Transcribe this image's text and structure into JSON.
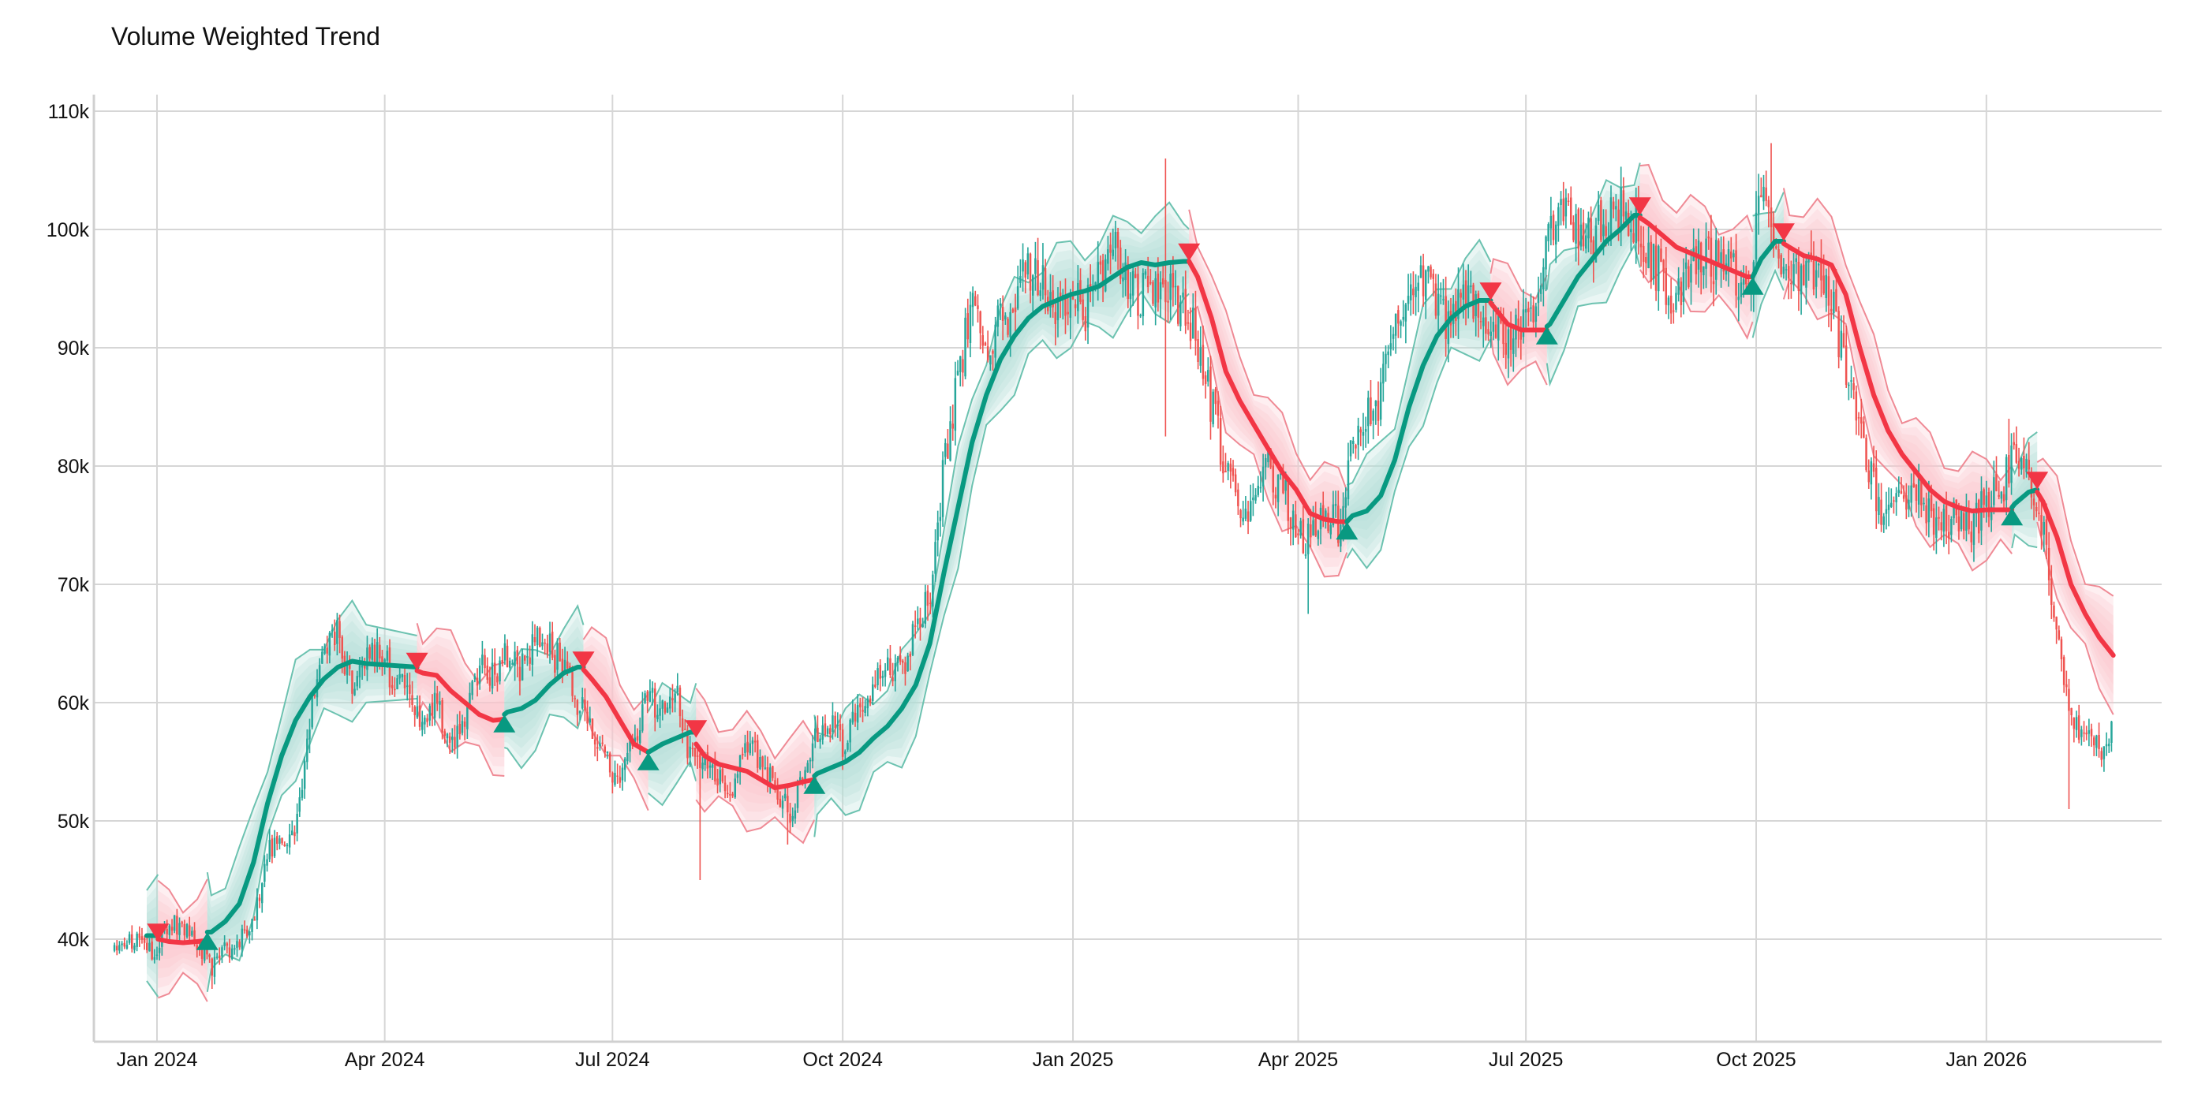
{
  "chart": {
    "title": "Volume Weighted Trend"
  },
  "chart_data": {
    "type": "candlestick",
    "title": "Volume Weighted Trend",
    "xlabel": "",
    "ylabel": "",
    "ylim": [
      31300,
      111500
    ],
    "grid": true,
    "legend": null,
    "y_ticks": [
      {
        "value": 40000,
        "label": "40k"
      },
      {
        "value": 50000,
        "label": "50k"
      },
      {
        "value": 60000,
        "label": "60k"
      },
      {
        "value": 70000,
        "label": "70k"
      },
      {
        "value": 80000,
        "label": "80k"
      },
      {
        "value": 90000,
        "label": "90k"
      },
      {
        "value": 100000,
        "label": "100k"
      },
      {
        "value": 110000,
        "label": "110k"
      }
    ],
    "x_ticks": [
      {
        "day": 0,
        "label": "Jan 2024"
      },
      {
        "day": 91,
        "label": "Apr 2024"
      },
      {
        "day": 182,
        "label": "Jul 2024"
      },
      {
        "day": 274,
        "label": "Oct 2024"
      },
      {
        "day": 366,
        "label": "Jan 2025"
      },
      {
        "day": 456,
        "label": "Apr 2025"
      },
      {
        "day": 547,
        "label": "Jul 2025"
      },
      {
        "day": 639,
        "label": "Oct 2025"
      },
      {
        "day": 731,
        "label": "Jan 2026"
      }
    ],
    "x_origin": "2024-01-01",
    "xlim_days": [
      -25,
      802
    ],
    "colors": {
      "bull_candle": "#26a69a",
      "bear_candle": "#ef5350",
      "bull_trend": "#089981",
      "bear_trend": "#f23645",
      "bull_band_fill": "#b2dfd6",
      "bear_band_fill": "#fbc7cc",
      "bull_band_edge": "#6cc2b0",
      "bear_band_edge": "#ef8a95",
      "grid": "#d6d6d6",
      "axis": "#d0d0d0"
    },
    "price_path": {
      "description": "approximate close price, sampled every step_days starting at start_day (days from 2024-01-01)",
      "start_day": -17.7,
      "step_days": 5.63,
      "closes": [
        39000,
        39500,
        40000,
        38500,
        41500,
        41000,
        39500,
        37500,
        39000,
        40000,
        41000,
        48000,
        47500,
        49000,
        59000,
        64000,
        66000,
        61000,
        64500,
        64000,
        62000,
        61000,
        58000,
        60000,
        56500,
        59000,
        63000,
        62000,
        64000,
        63000,
        65000,
        64500,
        63000,
        60000,
        58000,
        55000,
        53000,
        57000,
        61000,
        59000,
        62000,
        55000,
        56000,
        54000,
        53000,
        56500,
        55000,
        53000,
        50500,
        54000,
        57000,
        58000,
        56000,
        60000,
        61000,
        63000,
        62500,
        66500,
        69000,
        80000,
        88000,
        93000,
        90000,
        92000,
        93500,
        97000,
        95000,
        92000,
        95000,
        93000,
        95500,
        98000,
        96000,
        94000,
        96000,
        95000,
        93000,
        91000,
        85000,
        80000,
        77000,
        76000,
        80000,
        78000,
        75000,
        73500,
        76000,
        75000,
        82000,
        84000,
        86000,
        93000,
        95000,
        96000,
        94000,
        92000,
        95000,
        93000,
        92000,
        90000,
        92000,
        93000,
        100000,
        101000,
        100000,
        99000,
        101000,
        102000,
        101000,
        98000,
        96000,
        94000,
        96000,
        98000,
        97000,
        96000,
        95000,
        102000,
        100000,
        96000,
        95000,
        97000,
        94000,
        88000,
        84000,
        78000,
        75000,
        77000,
        78000,
        76000,
        75000,
        76000,
        75000,
        77000,
        78000,
        81000,
        79000,
        75000,
        66000,
        58000,
        57500,
        56000,
        57500
      ],
      "notable_extremes": [
        {
          "day": 22,
          "low": 35800
        },
        {
          "day": 72,
          "high": 67300
        },
        {
          "day": 217,
          "low": 45000
        },
        {
          "day": 252,
          "low": 48000
        },
        {
          "day": 403,
          "high": 106000
        },
        {
          "day": 403,
          "low": 82500
        },
        {
          "day": 460,
          "low": 67500
        },
        {
          "day": 645,
          "high": 107300
        },
        {
          "day": 740,
          "high": 84000
        },
        {
          "day": 764,
          "low": 51000
        }
      ]
    },
    "trend_segments": [
      {
        "regime": "bull",
        "points": [
          [
            -4.1,
            40300
          ],
          [
            0.4,
            40300
          ]
        ]
      },
      {
        "regime": "bear",
        "points": [
          [
            0.4,
            40000
          ],
          [
            4.8,
            39800
          ],
          [
            10.4,
            39700
          ],
          [
            16.1,
            39800
          ],
          [
            20.1,
            39900
          ]
        ]
      },
      {
        "regime": "bull",
        "points": [
          [
            20.1,
            40600
          ],
          [
            21.7,
            40600
          ],
          [
            27.3,
            41500
          ],
          [
            32.9,
            43000
          ],
          [
            38.6,
            46500
          ],
          [
            44.2,
            51500
          ],
          [
            49.8,
            55500
          ],
          [
            55.4,
            58500
          ],
          [
            61.1,
            60500
          ],
          [
            66.7,
            62000
          ],
          [
            72.3,
            63000
          ],
          [
            78.0,
            63500
          ],
          [
            83.6,
            63300
          ],
          [
            103.9,
            63000
          ]
        ]
      },
      {
        "regime": "bear",
        "points": [
          [
            103.9,
            62700
          ],
          [
            106.2,
            62500
          ],
          [
            111.8,
            62300
          ],
          [
            117.4,
            61000
          ],
          [
            123.1,
            60000
          ],
          [
            128.7,
            59000
          ],
          [
            134.3,
            58500
          ],
          [
            138.8,
            58600
          ]
        ]
      },
      {
        "regime": "bull",
        "points": [
          [
            138.8,
            59000
          ],
          [
            140.0,
            59200
          ],
          [
            145.6,
            59500
          ],
          [
            151.2,
            60200
          ],
          [
            156.9,
            61500
          ],
          [
            162.5,
            62500
          ],
          [
            168.1,
            63000
          ],
          [
            170.4,
            63000
          ]
        ]
      },
      {
        "regime": "bear",
        "points": [
          [
            170.4,
            62800
          ],
          [
            173.7,
            62000
          ],
          [
            179.4,
            60500
          ],
          [
            185.0,
            58500
          ],
          [
            190.6,
            56500
          ],
          [
            196.3,
            55800
          ]
        ]
      },
      {
        "regime": "bull",
        "points": [
          [
            196.3,
            55800
          ],
          [
            201.9,
            56500
          ],
          [
            207.5,
            57000
          ],
          [
            213.1,
            57500
          ],
          [
            215.4,
            57500
          ]
        ]
      },
      {
        "regime": "bear",
        "points": [
          [
            215.4,
            56500
          ],
          [
            218.8,
            55500
          ],
          [
            224.4,
            54800
          ],
          [
            230.0,
            54500
          ],
          [
            235.7,
            54200
          ],
          [
            241.3,
            53500
          ],
          [
            246.9,
            52800
          ],
          [
            252.5,
            53000
          ],
          [
            258.2,
            53300
          ],
          [
            262.7,
            53500
          ]
        ]
      },
      {
        "regime": "bull",
        "points": [
          [
            262.7,
            53800
          ],
          [
            263.8,
            54000
          ],
          [
            269.4,
            54500
          ],
          [
            275.1,
            55000
          ],
          [
            280.7,
            55800
          ],
          [
            286.3,
            57000
          ],
          [
            291.9,
            58000
          ],
          [
            297.6,
            59500
          ],
          [
            303.2,
            61500
          ],
          [
            308.8,
            65000
          ],
          [
            314.5,
            71000
          ],
          [
            320.1,
            76500
          ],
          [
            325.7,
            82000
          ],
          [
            331.4,
            86000
          ],
          [
            337.0,
            89000
          ],
          [
            342.6,
            91000
          ],
          [
            348.2,
            92500
          ],
          [
            353.9,
            93500
          ],
          [
            359.5,
            94000
          ],
          [
            365.1,
            94500
          ],
          [
            370.8,
            94800
          ],
          [
            376.4,
            95200
          ],
          [
            382.0,
            96000
          ],
          [
            387.7,
            96800
          ],
          [
            393.3,
            97200
          ],
          [
            398.9,
            97000
          ],
          [
            404.5,
            97200
          ],
          [
            410.2,
            97300
          ],
          [
            412.4,
            97300
          ]
        ]
      },
      {
        "regime": "bear",
        "points": [
          [
            412.4,
            97300
          ],
          [
            415.8,
            96000
          ],
          [
            421.4,
            92500
          ],
          [
            427.1,
            88000
          ],
          [
            432.7,
            85500
          ],
          [
            438.3,
            83500
          ],
          [
            443.9,
            81500
          ],
          [
            449.6,
            79500
          ],
          [
            455.2,
            78000
          ],
          [
            460.8,
            76000
          ],
          [
            466.5,
            75500
          ],
          [
            472.1,
            75300
          ],
          [
            475.5,
            75300
          ]
        ]
      },
      {
        "regime": "bull",
        "points": [
          [
            475.5,
            75300
          ],
          [
            477.7,
            75800
          ],
          [
            483.4,
            76200
          ],
          [
            489.0,
            77500
          ],
          [
            494.6,
            80500
          ],
          [
            500.3,
            85000
          ],
          [
            505.9,
            88500
          ],
          [
            511.5,
            91000
          ],
          [
            517.1,
            92500
          ],
          [
            522.8,
            93500
          ],
          [
            528.4,
            94000
          ],
          [
            532.9,
            94000
          ]
        ]
      },
      {
        "regime": "bear",
        "points": [
          [
            532.9,
            93800
          ],
          [
            534.0,
            93500
          ],
          [
            539.7,
            92000
          ],
          [
            545.3,
            91500
          ],
          [
            550.9,
            91500
          ],
          [
            555.4,
            91500
          ]
        ]
      },
      {
        "regime": "bull",
        "points": [
          [
            555.4,
            91800
          ],
          [
            556.6,
            92000
          ],
          [
            562.2,
            94000
          ],
          [
            567.8,
            96000
          ],
          [
            573.5,
            97500
          ],
          [
            579.1,
            99000
          ],
          [
            584.7,
            100000
          ],
          [
            590.3,
            101200
          ],
          [
            592.6,
            101200
          ]
        ]
      },
      {
        "regime": "bear",
        "points": [
          [
            592.6,
            101000
          ],
          [
            596.0,
            100500
          ],
          [
            601.6,
            99500
          ],
          [
            607.2,
            98500
          ],
          [
            612.8,
            98000
          ],
          [
            618.5,
            97500
          ],
          [
            624.1,
            97000
          ],
          [
            629.7,
            96500
          ],
          [
            635.4,
            96000
          ],
          [
            637.6,
            96000
          ]
        ]
      },
      {
        "regime": "bull",
        "points": [
          [
            637.6,
            96000
          ],
          [
            641.0,
            97500
          ],
          [
            646.6,
            99000
          ],
          [
            650.0,
            99000
          ]
        ]
      },
      {
        "regime": "bear",
        "points": [
          [
            650.0,
            98800
          ],
          [
            652.3,
            98500
          ],
          [
            657.9,
            97800
          ],
          [
            663.5,
            97500
          ],
          [
            669.1,
            97000
          ],
          [
            674.8,
            94500
          ],
          [
            680.4,
            90000
          ],
          [
            686.0,
            86000
          ],
          [
            691.7,
            83000
          ],
          [
            697.3,
            81000
          ],
          [
            702.9,
            79500
          ],
          [
            708.5,
            78000
          ],
          [
            714.2,
            77000
          ],
          [
            719.8,
            76500
          ],
          [
            725.4,
            76200
          ],
          [
            731.1,
            76300
          ],
          [
            736.7,
            76300
          ],
          [
            741.2,
            76300
          ]
        ]
      },
      {
        "regime": "bull",
        "points": [
          [
            741.2,
            76500
          ],
          [
            742.3,
            76800
          ],
          [
            747.9,
            77800
          ],
          [
            751.3,
            78000
          ]
        ]
      },
      {
        "regime": "bear",
        "points": [
          [
            751.3,
            77800
          ],
          [
            753.6,
            77000
          ],
          [
            759.2,
            74000
          ],
          [
            764.8,
            70000
          ],
          [
            770.5,
            67500
          ],
          [
            776.1,
            65500
          ],
          [
            781.7,
            64000
          ]
        ]
      }
    ],
    "band_half_width": 4500,
    "signals": [
      {
        "type": "bear",
        "day": 0.4,
        "price": 39800
      },
      {
        "type": "bull",
        "day": 20.1,
        "price": 40600
      },
      {
        "type": "bear",
        "day": 103.9,
        "price": 62700
      },
      {
        "type": "bull",
        "day": 138.8,
        "price": 59000
      },
      {
        "type": "bear",
        "day": 170.4,
        "price": 62800
      },
      {
        "type": "bull",
        "day": 196.3,
        "price": 55800
      },
      {
        "type": "bear",
        "day": 215.4,
        "price": 57000
      },
      {
        "type": "bull",
        "day": 262.7,
        "price": 53800
      },
      {
        "type": "bear",
        "day": 412.4,
        "price": 97300
      },
      {
        "type": "bull",
        "day": 475.5,
        "price": 75300
      },
      {
        "type": "bear",
        "day": 532.9,
        "price": 94000
      },
      {
        "type": "bull",
        "day": 555.4,
        "price": 91800
      },
      {
        "type": "bear",
        "day": 592.6,
        "price": 101200
      },
      {
        "type": "bull",
        "day": 637.6,
        "price": 96000
      },
      {
        "type": "bear",
        "day": 650.0,
        "price": 99000
      },
      {
        "type": "bull",
        "day": 741.2,
        "price": 76500
      },
      {
        "type": "bear",
        "day": 751.3,
        "price": 78000
      }
    ]
  }
}
